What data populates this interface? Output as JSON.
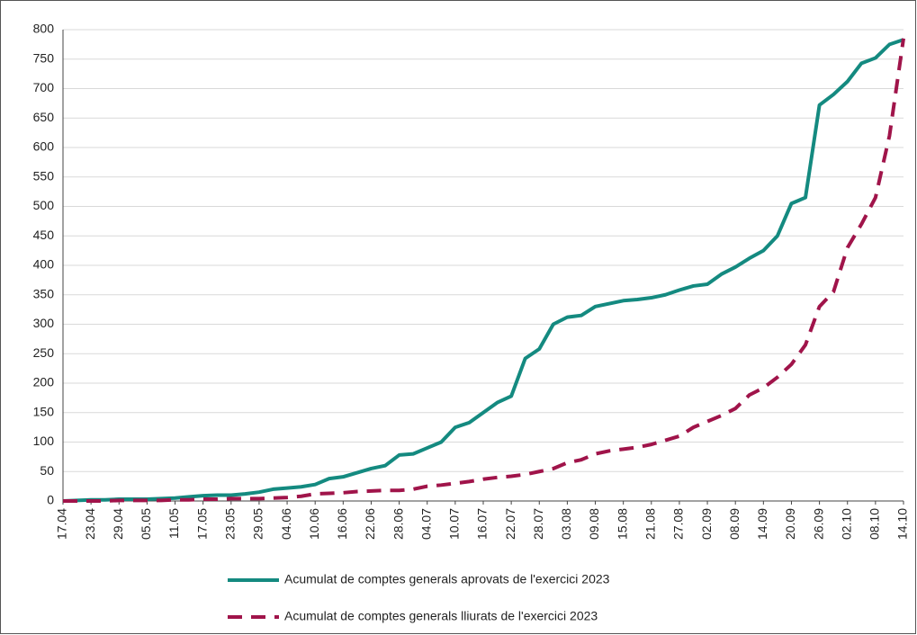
{
  "chart_data": {
    "type": "line",
    "categories": [
      "17.04",
      null,
      "23.04",
      null,
      "29.04",
      null,
      "05.05",
      null,
      "11.05",
      null,
      "17.05",
      null,
      "23.05",
      null,
      "29.05",
      null,
      "04.06",
      null,
      "10.06",
      null,
      "16.06",
      null,
      "22.06",
      null,
      "28.06",
      null,
      "04.07",
      null,
      "10.07",
      null,
      "16.07",
      null,
      "22.07",
      null,
      "28.07",
      null,
      "03.08",
      null,
      "09.08",
      null,
      "15.08",
      null,
      "21.08",
      null,
      "27.08",
      null,
      "02.09",
      null,
      "08.09",
      null,
      "14.09",
      null,
      "20.09",
      null,
      "26.09",
      null,
      "02.10",
      null,
      "08.10",
      null,
      "14.10"
    ],
    "series": [
      {
        "name": "Acumulat de comptes generals aprovats de l'exercici 2023",
        "color": "#148a80",
        "dash": false,
        "values": [
          0,
          1,
          2,
          2,
          3,
          3,
          3,
          4,
          5,
          7,
          9,
          10,
          10,
          12,
          15,
          20,
          22,
          24,
          28,
          38,
          41,
          48,
          55,
          60,
          78,
          80,
          90,
          100,
          125,
          133,
          150,
          167,
          178,
          242,
          258,
          300,
          312,
          315,
          330,
          335,
          340,
          342,
          345,
          350,
          358,
          365,
          368,
          385,
          397,
          412,
          425,
          450,
          505,
          515,
          672,
          690,
          712,
          743,
          752,
          775,
          783
        ]
      },
      {
        "name": "Acumulat de comptes generals lliurats de l'exercici 2023",
        "color": "#a0144a",
        "dash": true,
        "values": [
          0,
          0,
          0,
          0,
          1,
          1,
          1,
          1,
          2,
          2,
          3,
          3,
          4,
          4,
          4,
          5,
          6,
          8,
          12,
          13,
          14,
          16,
          17,
          18,
          18,
          20,
          25,
          27,
          30,
          33,
          37,
          40,
          42,
          45,
          50,
          55,
          65,
          70,
          80,
          85,
          88,
          91,
          96,
          103,
          110,
          125,
          135,
          145,
          157,
          180,
          192,
          210,
          232,
          265,
          330,
          355,
          430,
          470,
          515,
          620,
          785
        ]
      }
    ],
    "ylim": [
      0,
      800
    ],
    "yticks": [
      0,
      50,
      100,
      150,
      200,
      250,
      300,
      350,
      400,
      450,
      500,
      550,
      600,
      650,
      700,
      750,
      800
    ],
    "grid": true,
    "legend": "bottom"
  }
}
